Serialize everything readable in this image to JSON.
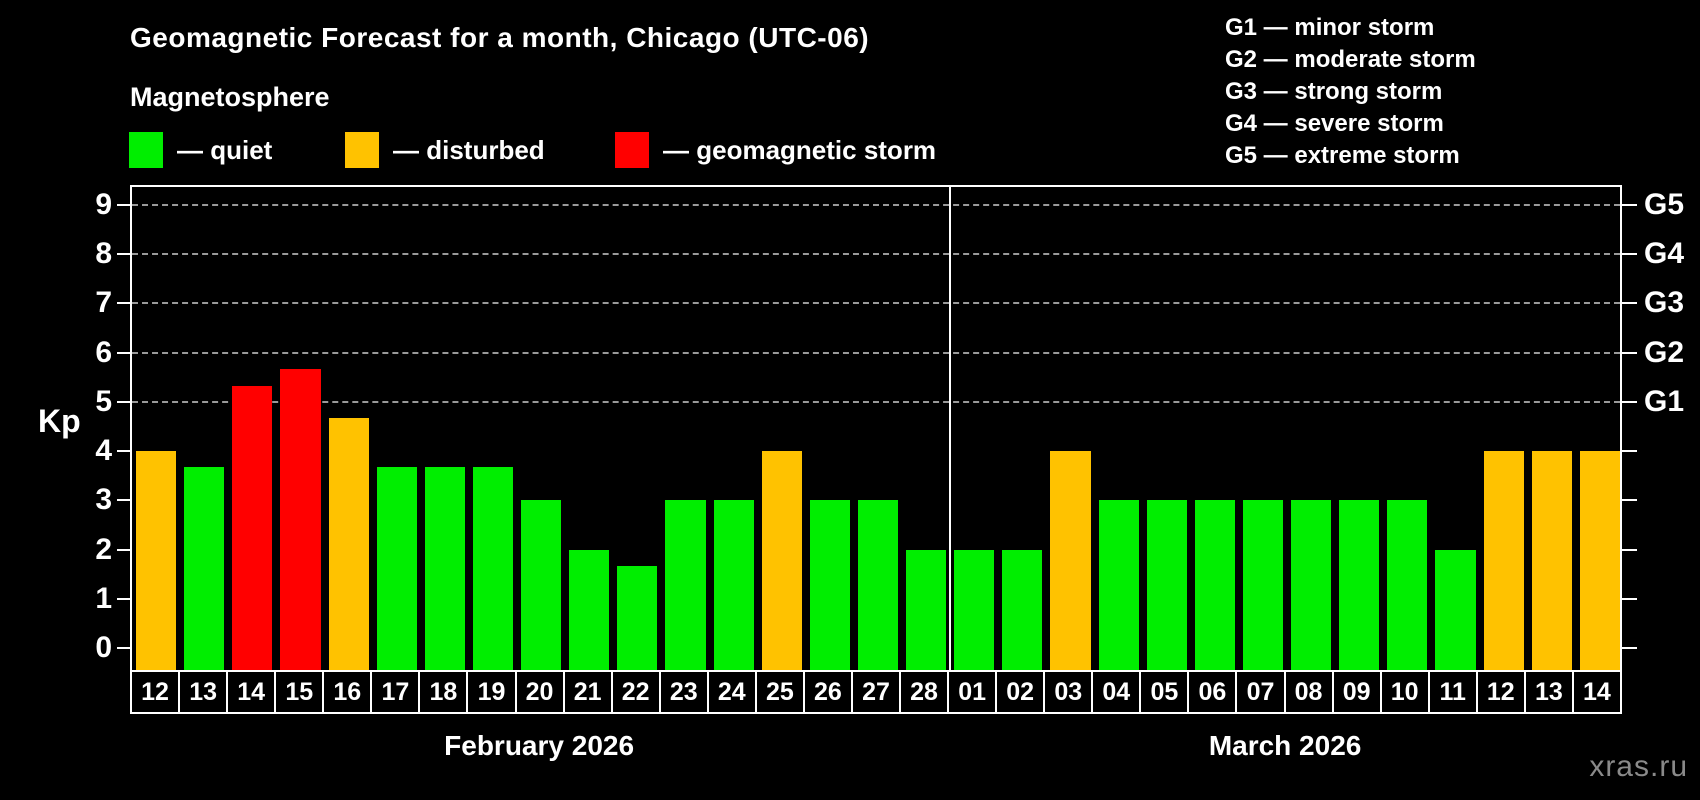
{
  "header": {
    "title": "Geomagnetic Forecast for a month, Chicago (UTC-06)",
    "subtitle": "Magnetosphere",
    "legend": [
      {
        "id": "quiet",
        "label": "— quiet"
      },
      {
        "id": "disturbed",
        "label": "— disturbed"
      },
      {
        "id": "storm",
        "label": "— geomagnetic storm"
      }
    ],
    "g_legend": [
      "G1 — minor storm",
      "G2 — moderate storm",
      "G3 — strong storm",
      "G4 — severe storm",
      "G5 — extreme storm"
    ]
  },
  "colors": {
    "quiet": "#00ee00",
    "disturbed": "#ffc200",
    "storm": "#ff0000",
    "axis": "#ffffff",
    "grid": "#9a9a9a",
    "watermark": "#8a8a8a",
    "background": "#000000"
  },
  "chart_data": {
    "type": "bar",
    "title": "Geomagnetic Forecast for a month, Chicago (UTC-06)",
    "ylabel": "Kp",
    "ylim": [
      -0.45,
      9.4
    ],
    "y_ticks": [
      0,
      1,
      2,
      3,
      4,
      5,
      6,
      7,
      8,
      9
    ],
    "dashed_gridlines_at": [
      5,
      6,
      7,
      8,
      9
    ],
    "right_axis_labels": [
      {
        "label": "G1",
        "kp": 5
      },
      {
        "label": "G2",
        "kp": 6
      },
      {
        "label": "G3",
        "kp": 7
      },
      {
        "label": "G4",
        "kp": 8
      },
      {
        "label": "G5",
        "kp": 9
      }
    ],
    "months": [
      {
        "label": "February 2026",
        "days": 17
      },
      {
        "label": "March 2026",
        "days": 14
      }
    ],
    "bars": [
      {
        "day": "12",
        "kp": 4.0,
        "status": "disturbed"
      },
      {
        "day": "13",
        "kp": 3.67,
        "status": "quiet"
      },
      {
        "day": "14",
        "kp": 5.33,
        "status": "storm"
      },
      {
        "day": "15",
        "kp": 5.67,
        "status": "storm"
      },
      {
        "day": "16",
        "kp": 4.67,
        "status": "disturbed"
      },
      {
        "day": "17",
        "kp": 3.67,
        "status": "quiet"
      },
      {
        "day": "18",
        "kp": 3.67,
        "status": "quiet"
      },
      {
        "day": "19",
        "kp": 3.67,
        "status": "quiet"
      },
      {
        "day": "20",
        "kp": 3.0,
        "status": "quiet"
      },
      {
        "day": "21",
        "kp": 2.0,
        "status": "quiet"
      },
      {
        "day": "22",
        "kp": 1.67,
        "status": "quiet"
      },
      {
        "day": "23",
        "kp": 3.0,
        "status": "quiet"
      },
      {
        "day": "24",
        "kp": 3.0,
        "status": "quiet"
      },
      {
        "day": "25",
        "kp": 4.0,
        "status": "disturbed"
      },
      {
        "day": "26",
        "kp": 3.0,
        "status": "quiet"
      },
      {
        "day": "27",
        "kp": 3.0,
        "status": "quiet"
      },
      {
        "day": "28",
        "kp": 2.0,
        "status": "quiet"
      },
      {
        "day": "01",
        "kp": 2.0,
        "status": "quiet"
      },
      {
        "day": "02",
        "kp": 2.0,
        "status": "quiet"
      },
      {
        "day": "03",
        "kp": 4.0,
        "status": "disturbed"
      },
      {
        "day": "04",
        "kp": 3.0,
        "status": "quiet"
      },
      {
        "day": "05",
        "kp": 3.0,
        "status": "quiet"
      },
      {
        "day": "06",
        "kp": 3.0,
        "status": "quiet"
      },
      {
        "day": "07",
        "kp": 3.0,
        "status": "quiet"
      },
      {
        "day": "08",
        "kp": 3.0,
        "status": "quiet"
      },
      {
        "day": "09",
        "kp": 3.0,
        "status": "quiet"
      },
      {
        "day": "10",
        "kp": 3.0,
        "status": "quiet"
      },
      {
        "day": "11",
        "kp": 2.0,
        "status": "quiet"
      },
      {
        "day": "12",
        "kp": 4.0,
        "status": "disturbed"
      },
      {
        "day": "13",
        "kp": 4.0,
        "status": "disturbed"
      },
      {
        "day": "14",
        "kp": 4.0,
        "status": "disturbed"
      }
    ]
  },
  "watermark": "xras.ru"
}
